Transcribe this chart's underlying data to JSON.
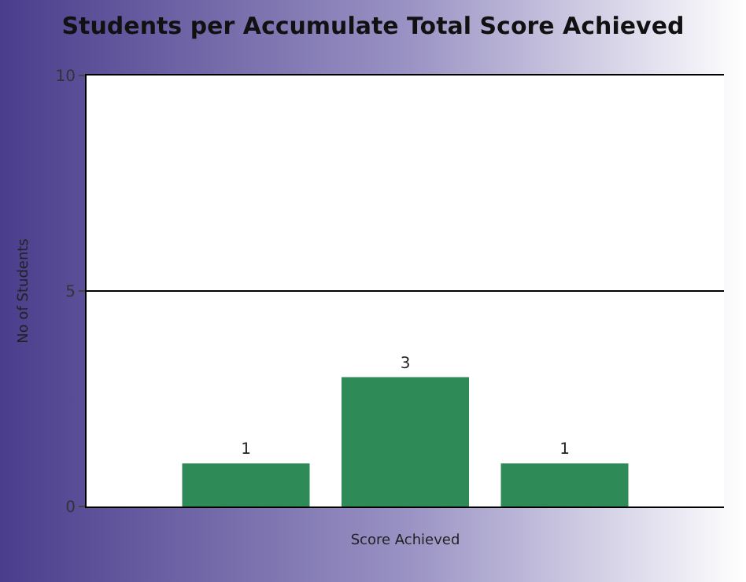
{
  "chart_data": {
    "type": "bar",
    "title": "Students per Accumulate Total Score Achieved",
    "xlabel": "Score Achieved",
    "ylabel": "No of Students",
    "categories": [
      null,
      null,
      null
    ],
    "values": [
      1,
      3,
      1
    ],
    "color": "#2e8b57",
    "ylim": [
      0,
      10
    ],
    "yticks": [
      0,
      5,
      10
    ],
    "grid": "y",
    "data_labels": true
  }
}
